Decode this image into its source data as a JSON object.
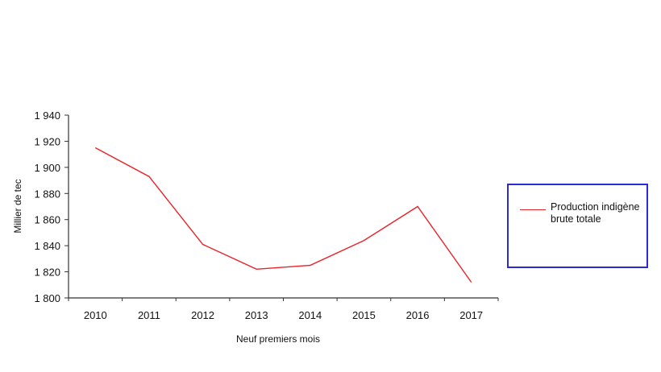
{
  "chart_data": {
    "type": "line",
    "title": "",
    "xlabel": "Neuf premiers mois",
    "ylabel": "Millier de tec",
    "categories": [
      "2010",
      "2011",
      "2012",
      "2013",
      "2014",
      "2015",
      "2016",
      "2017"
    ],
    "series": [
      {
        "name": "Production indigène brute totale",
        "color": "#e8232a",
        "values": [
          1915,
          1893,
          1841,
          1822,
          1825,
          1844,
          1870,
          1812
        ]
      }
    ],
    "ylim": [
      1800,
      1940
    ],
    "yticks": [
      1800,
      1820,
      1840,
      1860,
      1880,
      1900,
      1920,
      1940
    ],
    "ytick_labels": [
      "1 800",
      "1 820",
      "1 840",
      "1 860",
      "1 880",
      "1 900",
      "1 920",
      "1 940"
    ],
    "grid": false,
    "legend_position": "right"
  },
  "legend": {
    "label": "Production indigène brute totale",
    "border_color": "#2b2bd6"
  }
}
